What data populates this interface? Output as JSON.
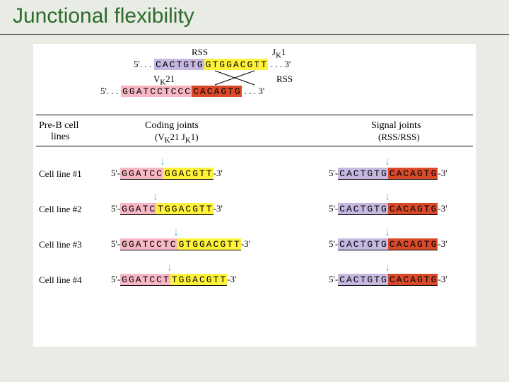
{
  "title": "Junctional flexibility",
  "colors": {
    "slide_bg": "#e9ece5",
    "canvas_bg": "#ffffff",
    "title_color": "#2f6b2c",
    "arrow_color": "#2aa5c9",
    "rss_purple": "#c6b8e0",
    "j_yellow": "#fff23a",
    "v_pink": "#f7b7c4",
    "rss_red": "#d84a2a",
    "text_black": "#000000"
  },
  "top": {
    "labels": {
      "rss1": "RSS",
      "j": "J",
      "j_sub": "K",
      "j_num": "1",
      "v": "V",
      "v_sub": "K",
      "v_num": "21",
      "rss2": "RSS"
    },
    "line1": {
      "five": "5'. . .",
      "seg1": {
        "seq": "CACTGTG",
        "bg": "rss_purple"
      },
      "seg2": {
        "seq": "GTGGACGTT",
        "bg": "j_yellow"
      },
      "three": ". . . 3'"
    },
    "line2": {
      "five": "5'. . .",
      "seg1": {
        "seq": "GGATCCTCCC",
        "bg": "v_pink"
      },
      "seg2": {
        "seq": "CACAGTG",
        "bg": "rss_red"
      },
      "three": ". . . 3'"
    }
  },
  "headers": {
    "col1": "Pre-B cell",
    "col1b": "lines",
    "col2": "Coding joints",
    "col2b_a": "(V",
    "col2b_k1": "K",
    "col2b_b": "21 J",
    "col2b_k2": "K",
    "col2b_c": "1)",
    "col3": "Signal joints",
    "col3b": "(RSS/RSS)"
  },
  "rows": [
    {
      "label": "Cell line #1",
      "coding": {
        "left": "GGATCC",
        "left_bg": "v_pink",
        "right": "GGACGTT",
        "right_bg": "j_yellow"
      },
      "signal": {
        "left": "CACTGTG",
        "left_bg": "rss_purple",
        "right": "CACAGTG",
        "right_bg": "rss_red"
      }
    },
    {
      "label": "Cell line #2",
      "coding": {
        "left": "GGATC",
        "left_bg": "v_pink",
        "right": "TGGACGTT",
        "right_bg": "j_yellow"
      },
      "signal": {
        "left": "CACTGTG",
        "left_bg": "rss_purple",
        "right": "CACAGTG",
        "right_bg": "rss_red"
      }
    },
    {
      "label": "Cell line #3",
      "coding": {
        "left": "GGATCCTC",
        "left_bg": "v_pink",
        "right": "GTGGACGTT",
        "right_bg": "j_yellow"
      },
      "signal": {
        "left": "CACTGTG",
        "left_bg": "rss_purple",
        "right": "CACAGTG",
        "right_bg": "rss_red"
      }
    },
    {
      "label": "Cell line #4",
      "coding": {
        "left": "GGATCCT",
        "left_bg": "v_pink",
        "right": "TGGACGTT",
        "right_bg": "j_yellow"
      },
      "signal": {
        "left": "CACTGTG",
        "left_bg": "rss_purple",
        "right": "CACAGTG",
        "right_bg": "rss_red"
      }
    }
  ],
  "ends": {
    "five": "5'-",
    "three": "-3'"
  }
}
